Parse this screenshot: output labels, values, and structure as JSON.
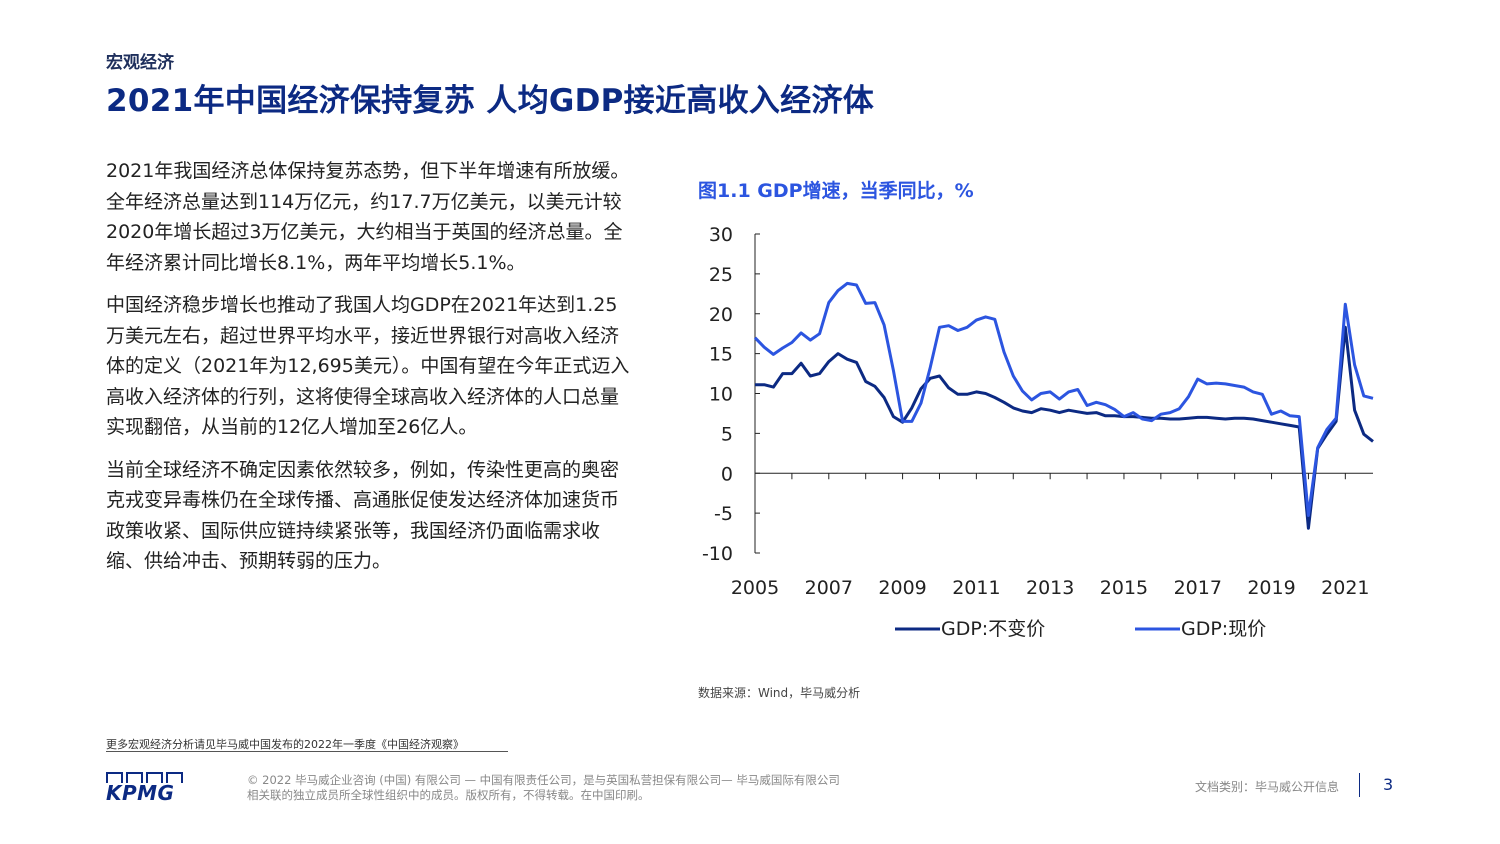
{
  "header": {
    "section": "宏观经济",
    "title": "2021年中国经济保持复苏 人均GDP接近高收入经济体"
  },
  "body": {
    "paragraphs": [
      "2021年我国经济总体保持复苏态势，但下半年增速有所放缓。全年经济总量达到114万亿元，约17.7万亿美元，以美元计较2020年增长超过3万亿美元，大约相当于英国的经济总量。全年经济累计同比增长8.1%，两年平均增长5.1%。",
      "中国经济稳步增长也推动了我国人均GDP在2021年达到1.25万美元左右，超过世界平均水平，接近世界银行对高收入经济体的定义（2021年为12,695美元）。中国有望在今年正式迈入高收入经济体的行列，这将使得全球高收入经济体的人口总量实现翻倍，从当前的12亿人增加至26亿人。",
      "当前全球经济不确定因素依然较多，例如，传染性更高的奥密克戎变异毒株仍在全球传播、高通胀促使发达经济体加速货币政策收紧、国际供应链持续紧张等，我国经济仍面临需求收缩、供给冲击、预期转弱的压力。"
    ]
  },
  "chart": {
    "title": "图1.1 GDP增速，当季同比，%",
    "source": "数据来源：Wind，毕马威分析"
  },
  "chart_data": {
    "type": "line",
    "title": "图1.1 GDP增速，当季同比，%",
    "xlabel": "",
    "ylabel": "",
    "xlim": [
      2005,
      2021.75
    ],
    "ylim": [
      -10,
      30
    ],
    "yticks": [
      30,
      25,
      20,
      15,
      10,
      5,
      0,
      -5,
      -10
    ],
    "xticks": [
      2005,
      2007,
      2009,
      2011,
      2013,
      2015,
      2017,
      2019,
      2021
    ],
    "legend_position": "bottom",
    "grid": false,
    "series": [
      {
        "name": "GDP:不变价",
        "color": "#0c2a83",
        "x": [
          2005.0,
          2005.25,
          2005.5,
          2005.75,
          2006.0,
          2006.25,
          2006.5,
          2006.75,
          2007.0,
          2007.25,
          2007.5,
          2007.75,
          2008.0,
          2008.25,
          2008.5,
          2008.75,
          2009.0,
          2009.25,
          2009.5,
          2009.75,
          2010.0,
          2010.25,
          2010.5,
          2010.75,
          2011.0,
          2011.25,
          2011.5,
          2011.75,
          2012.0,
          2012.25,
          2012.5,
          2012.75,
          2013.0,
          2013.25,
          2013.5,
          2013.75,
          2014.0,
          2014.25,
          2014.5,
          2014.75,
          2015.0,
          2015.25,
          2015.5,
          2015.75,
          2016.0,
          2016.25,
          2016.5,
          2016.75,
          2017.0,
          2017.25,
          2017.5,
          2017.75,
          2018.0,
          2018.25,
          2018.5,
          2018.75,
          2019.0,
          2019.25,
          2019.5,
          2019.75,
          2020.0,
          2020.25,
          2020.5,
          2020.75,
          2021.0,
          2021.25,
          2021.5,
          2021.75
        ],
        "values": [
          11.1,
          11.1,
          10.8,
          12.5,
          12.5,
          13.8,
          12.2,
          12.5,
          14.0,
          15.0,
          14.3,
          13.9,
          11.5,
          10.9,
          9.5,
          7.1,
          6.4,
          8.2,
          10.6,
          11.9,
          12.2,
          10.7,
          9.9,
          9.9,
          10.2,
          10.0,
          9.5,
          8.9,
          8.2,
          7.8,
          7.6,
          8.1,
          7.9,
          7.6,
          7.9,
          7.7,
          7.5,
          7.6,
          7.2,
          7.2,
          7.1,
          7.1,
          7.0,
          6.9,
          6.9,
          6.8,
          6.8,
          6.9,
          7.0,
          7.0,
          6.9,
          6.8,
          6.9,
          6.9,
          6.8,
          6.6,
          6.4,
          6.2,
          6.0,
          5.8,
          -6.9,
          3.1,
          4.9,
          6.5,
          18.3,
          7.9,
          4.9,
          4.0
        ]
      },
      {
        "name": "GDP:现价",
        "color": "#2c55e0",
        "x": [
          2005.0,
          2005.25,
          2005.5,
          2005.75,
          2006.0,
          2006.25,
          2006.5,
          2006.75,
          2007.0,
          2007.25,
          2007.5,
          2007.75,
          2008.0,
          2008.25,
          2008.5,
          2008.75,
          2009.0,
          2009.25,
          2009.5,
          2009.75,
          2010.0,
          2010.25,
          2010.5,
          2010.75,
          2011.0,
          2011.25,
          2011.5,
          2011.75,
          2012.0,
          2012.25,
          2012.5,
          2012.75,
          2013.0,
          2013.25,
          2013.5,
          2013.75,
          2014.0,
          2014.25,
          2014.5,
          2014.75,
          2015.0,
          2015.25,
          2015.5,
          2015.75,
          2016.0,
          2016.25,
          2016.5,
          2016.75,
          2017.0,
          2017.25,
          2017.5,
          2017.75,
          2018.0,
          2018.25,
          2018.5,
          2018.75,
          2019.0,
          2019.25,
          2019.5,
          2019.75,
          2020.0,
          2020.25,
          2020.5,
          2020.75,
          2021.0,
          2021.25,
          2021.5,
          2021.75
        ],
        "values": [
          17.0,
          15.8,
          14.9,
          15.7,
          16.4,
          17.6,
          16.7,
          17.5,
          21.4,
          22.9,
          23.8,
          23.6,
          21.3,
          21.4,
          18.6,
          12.9,
          6.5,
          6.5,
          8.8,
          13.3,
          18.3,
          18.5,
          17.9,
          18.3,
          19.2,
          19.6,
          19.3,
          15.2,
          12.2,
          10.3,
          9.2,
          10.0,
          10.2,
          9.3,
          10.2,
          10.5,
          8.5,
          8.9,
          8.6,
          8.0,
          7.1,
          7.6,
          6.8,
          6.6,
          7.4,
          7.6,
          8.1,
          9.6,
          11.8,
          11.2,
          11.3,
          11.2,
          11.0,
          10.8,
          10.2,
          9.9,
          7.4,
          7.8,
          7.2,
          7.1,
          -5.3,
          3.2,
          5.5,
          6.9,
          21.2,
          13.6,
          9.7,
          9.4
        ]
      }
    ]
  },
  "footer": {
    "footnote": "更多宏观经济分析请见毕马威中国发布的2022年一季度《中国经济观察》",
    "logo_text": "KPMG",
    "copyright_line1": "© 2022 毕马威企业咨询 (中国) 有限公司 — 中国有限责任公司，是与英国私营担保有限公司— 毕马威国际有限公司",
    "copyright_line2": "相关联的独立成员所全球性组织中的成员。版权所有，不得转载。在中国印刷。",
    "doc_class": "文档类别：毕马威公开信息",
    "page_number": "3"
  }
}
